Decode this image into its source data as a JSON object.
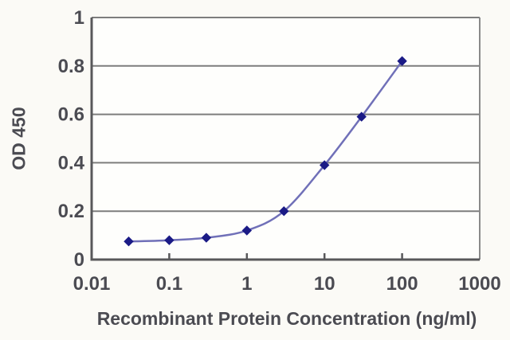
{
  "figure": {
    "background": "#fbfaf6"
  },
  "chart_data": {
    "type": "line",
    "title": "",
    "xlabel": "Recombinant Protein Concentration (ng/ml)",
    "ylabel": "OD 450",
    "x_scale": "log",
    "xlim": [
      0.01,
      1000
    ],
    "ylim": [
      0,
      1
    ],
    "x_ticks": [
      0.01,
      0.1,
      1,
      10,
      100,
      1000
    ],
    "x_tick_labels": [
      "0.01",
      "0.1",
      "1",
      "10",
      "100",
      "1000"
    ],
    "y_ticks": [
      0,
      0.2,
      0.4,
      0.6,
      0.8,
      1
    ],
    "y_tick_labels": [
      "0",
      "0.2",
      "0.4",
      "0.6",
      "0.8",
      "1"
    ],
    "grid": "horizontal",
    "legend": "none",
    "series": [
      {
        "name": "OD 450",
        "marker": "diamond",
        "smooth": true,
        "x": [
          0.03,
          0.1,
          0.3,
          1,
          3,
          10,
          30,
          100
        ],
        "y": [
          0.075,
          0.08,
          0.09,
          0.12,
          0.2,
          0.39,
          0.59,
          0.82
        ]
      }
    ],
    "colors": {
      "line": "#7070b8",
      "marker": "#1b1b86",
      "grid": "#7d7d7d",
      "right_border": "#8a8a8a",
      "axis": "#58585a",
      "text": "#4b4b52",
      "plot_background": "#fefefc"
    }
  }
}
